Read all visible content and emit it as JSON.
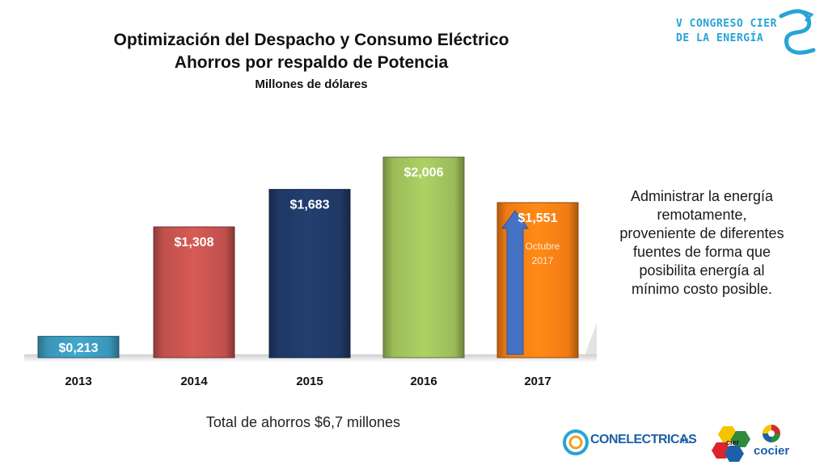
{
  "title": {
    "line1": "Optimización del Despacho y Consumo Eléctrico",
    "line2": "Ahorros por respaldo de Potencia",
    "line3": "Millones de dólares"
  },
  "logo_top": {
    "line1": "V CONGRESO CIER",
    "line2": "DE LA ENERGÍA"
  },
  "chart_data": {
    "type": "bar",
    "categories": [
      "2013",
      "2014",
      "2015",
      "2016",
      "2017"
    ],
    "values": [
      0.213,
      1.308,
      1.683,
      2.006,
      1.551
    ],
    "data_labels": [
      "$0,213",
      "$1,308",
      "$1,683",
      "$2,006",
      "$1,551"
    ],
    "annotation_2017": [
      "Octubre",
      "2017"
    ],
    "colors": [
      "#3a96b8",
      "#c0504d",
      "#1f3864",
      "#9bbb59",
      "#f07b14"
    ],
    "arrow_color": "#4472c4",
    "title": "",
    "xlabel": "",
    "ylabel": "",
    "ylim": [
      0,
      2.1
    ]
  },
  "side_text": [
    "Administrar la energía",
    "remotamente,",
    "proveniente de diferentes",
    "fuentes de forma que",
    "posibilita energía al",
    "mínimo costo posible."
  ],
  "total": "Total de ahorros $6,7 millones",
  "logos": {
    "conelectricas": "CONELECTRICAS",
    "conelectricas_suffix": "R.L.",
    "cier": "cier",
    "cocier": "cocier"
  }
}
